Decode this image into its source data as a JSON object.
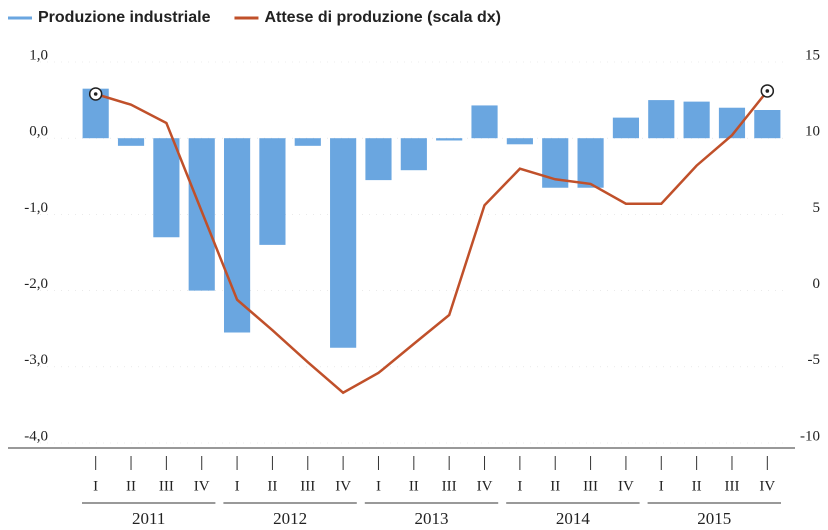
{
  "chart_data": {
    "type": "bar_line",
    "categories": [
      "I",
      "II",
      "III",
      "IV",
      "I",
      "II",
      "III",
      "IV",
      "I",
      "II",
      "III",
      "IV",
      "I",
      "II",
      "III",
      "IV",
      "I",
      "II",
      "III",
      "IV"
    ],
    "groups": [
      "2011",
      "2012",
      "2013",
      "2014",
      "2015"
    ],
    "series": [
      {
        "name": "Produzione industriale",
        "color": "#6aa6e0",
        "type": "bar",
        "values": [
          0.65,
          -0.1,
          -1.3,
          -2.0,
          -2.55,
          -1.4,
          -0.1,
          -2.75,
          -0.55,
          -0.42,
          -0.03,
          0.43,
          -0.08,
          -0.65,
          -0.65,
          0.27,
          0.5,
          0.48,
          0.4,
          0.37
        ]
      },
      {
        "name": "Attese di produzione (scala dx)",
        "color": "#c0502a",
        "type": "line",
        "axis": "y2",
        "values": [
          12.9,
          12.2,
          11.0,
          5.2,
          -0.6,
          -2.6,
          -4.7,
          -6.7,
          -5.4,
          -3.5,
          -1.6,
          5.6,
          8.0,
          7.3,
          7.0,
          5.7,
          5.7,
          8.2,
          10.2,
          13.1
        ]
      }
    ],
    "ylim": [
      -4,
      1
    ],
    "yticks": [
      {
        "value": 1,
        "label": "1,0"
      },
      {
        "value": 0,
        "label": "0,0"
      },
      {
        "value": -1,
        "label": "-1,0"
      },
      {
        "value": -2,
        "label": "-2,0"
      },
      {
        "value": -3,
        "label": "-3,0"
      },
      {
        "value": -4,
        "label": "-4,0"
      }
    ],
    "y2lim": [
      -10,
      15
    ],
    "y2ticks": [
      15,
      10,
      5,
      0,
      -5,
      -10
    ],
    "legend": "top-left"
  }
}
